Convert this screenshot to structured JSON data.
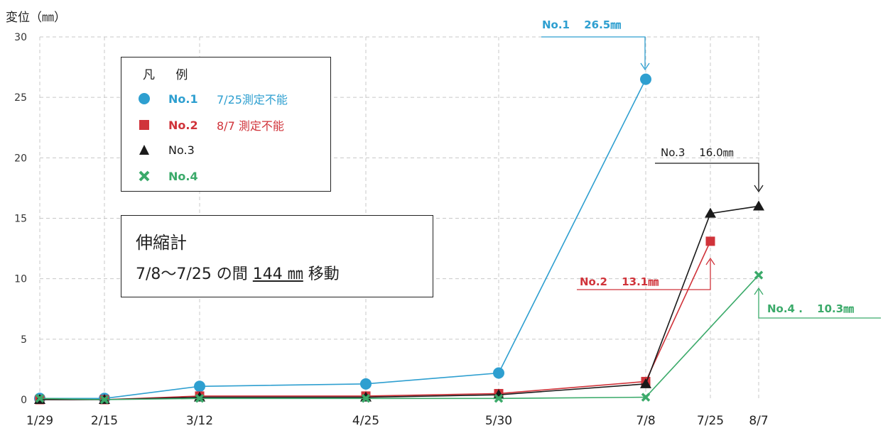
{
  "chart_data": {
    "type": "line",
    "ylabel": "変位（㎜）",
    "ylim": [
      0,
      30
    ],
    "yticks": [
      0,
      5,
      10,
      15,
      20,
      25,
      30
    ],
    "categories": [
      "1/29",
      "2/15",
      "3/12",
      "4/25",
      "5/30",
      "7/8",
      "7/25",
      "8/7"
    ],
    "grid": true,
    "series": [
      {
        "name": "No.1",
        "color": "#2E9FD0",
        "marker": "circle",
        "x": [
          "1/29",
          "2/15",
          "3/12",
          "4/25",
          "5/30",
          "7/8"
        ],
        "values": [
          0.1,
          0.1,
          1.1,
          1.3,
          2.2,
          26.5
        ]
      },
      {
        "name": "No.2",
        "color": "#D0333A",
        "marker": "square",
        "x": [
          "1/29",
          "2/15",
          "3/12",
          "4/25",
          "5/30",
          "7/8",
          "7/25"
        ],
        "values": [
          0.0,
          0.0,
          0.3,
          0.3,
          0.5,
          1.5,
          13.1
        ]
      },
      {
        "name": "No.3",
        "color": "#1a1a1a",
        "marker": "triangle",
        "x": [
          "1/29",
          "2/15",
          "3/12",
          "4/25",
          "5/30",
          "7/8",
          "7/25",
          "8/7"
        ],
        "values": [
          0.0,
          0.0,
          0.2,
          0.2,
          0.4,
          1.3,
          15.4,
          16.0
        ]
      },
      {
        "name": "No.4",
        "color": "#3BAA6A",
        "marker": "x",
        "x": [
          "1/29",
          "2/15",
          "3/12",
          "4/25",
          "5/30",
          "7/8",
          "8/7"
        ],
        "values": [
          0.1,
          0.0,
          0.1,
          0.1,
          0.1,
          0.2,
          10.3
        ]
      }
    ],
    "annotations": [
      {
        "series": "No.1",
        "text": "No.1　 26.5㎜",
        "x": "7/8",
        "y": 26.5
      },
      {
        "series": "No.3",
        "text": "No.3　 16.0㎜",
        "x": "8/7",
        "y": 16.0
      },
      {
        "series": "No.2",
        "text": "No.2　 13.1㎜",
        "x": "7/25",
        "y": 13.1
      },
      {
        "series": "No.4",
        "text": "No.4 .　 10.3㎜",
        "x": "8/7",
        "y": 10.3
      }
    ]
  },
  "legend": {
    "title": "凡 例",
    "items": [
      {
        "name": "No.1",
        "note": "7/25測定不能",
        "color": "#2E9FD0"
      },
      {
        "name": "No.2",
        "note": "8/7 測定不能",
        "color": "#D0333A"
      },
      {
        "name": "No.3",
        "note": "",
        "color": "#1a1a1a"
      },
      {
        "name": "No.4",
        "note": "",
        "color": "#3BAA6A"
      }
    ]
  },
  "info_box": {
    "title": "伸縮計",
    "line_prefix": "7/8～7/25 の間 ",
    "line_value": "144 ㎜",
    "line_suffix": " 移動"
  }
}
